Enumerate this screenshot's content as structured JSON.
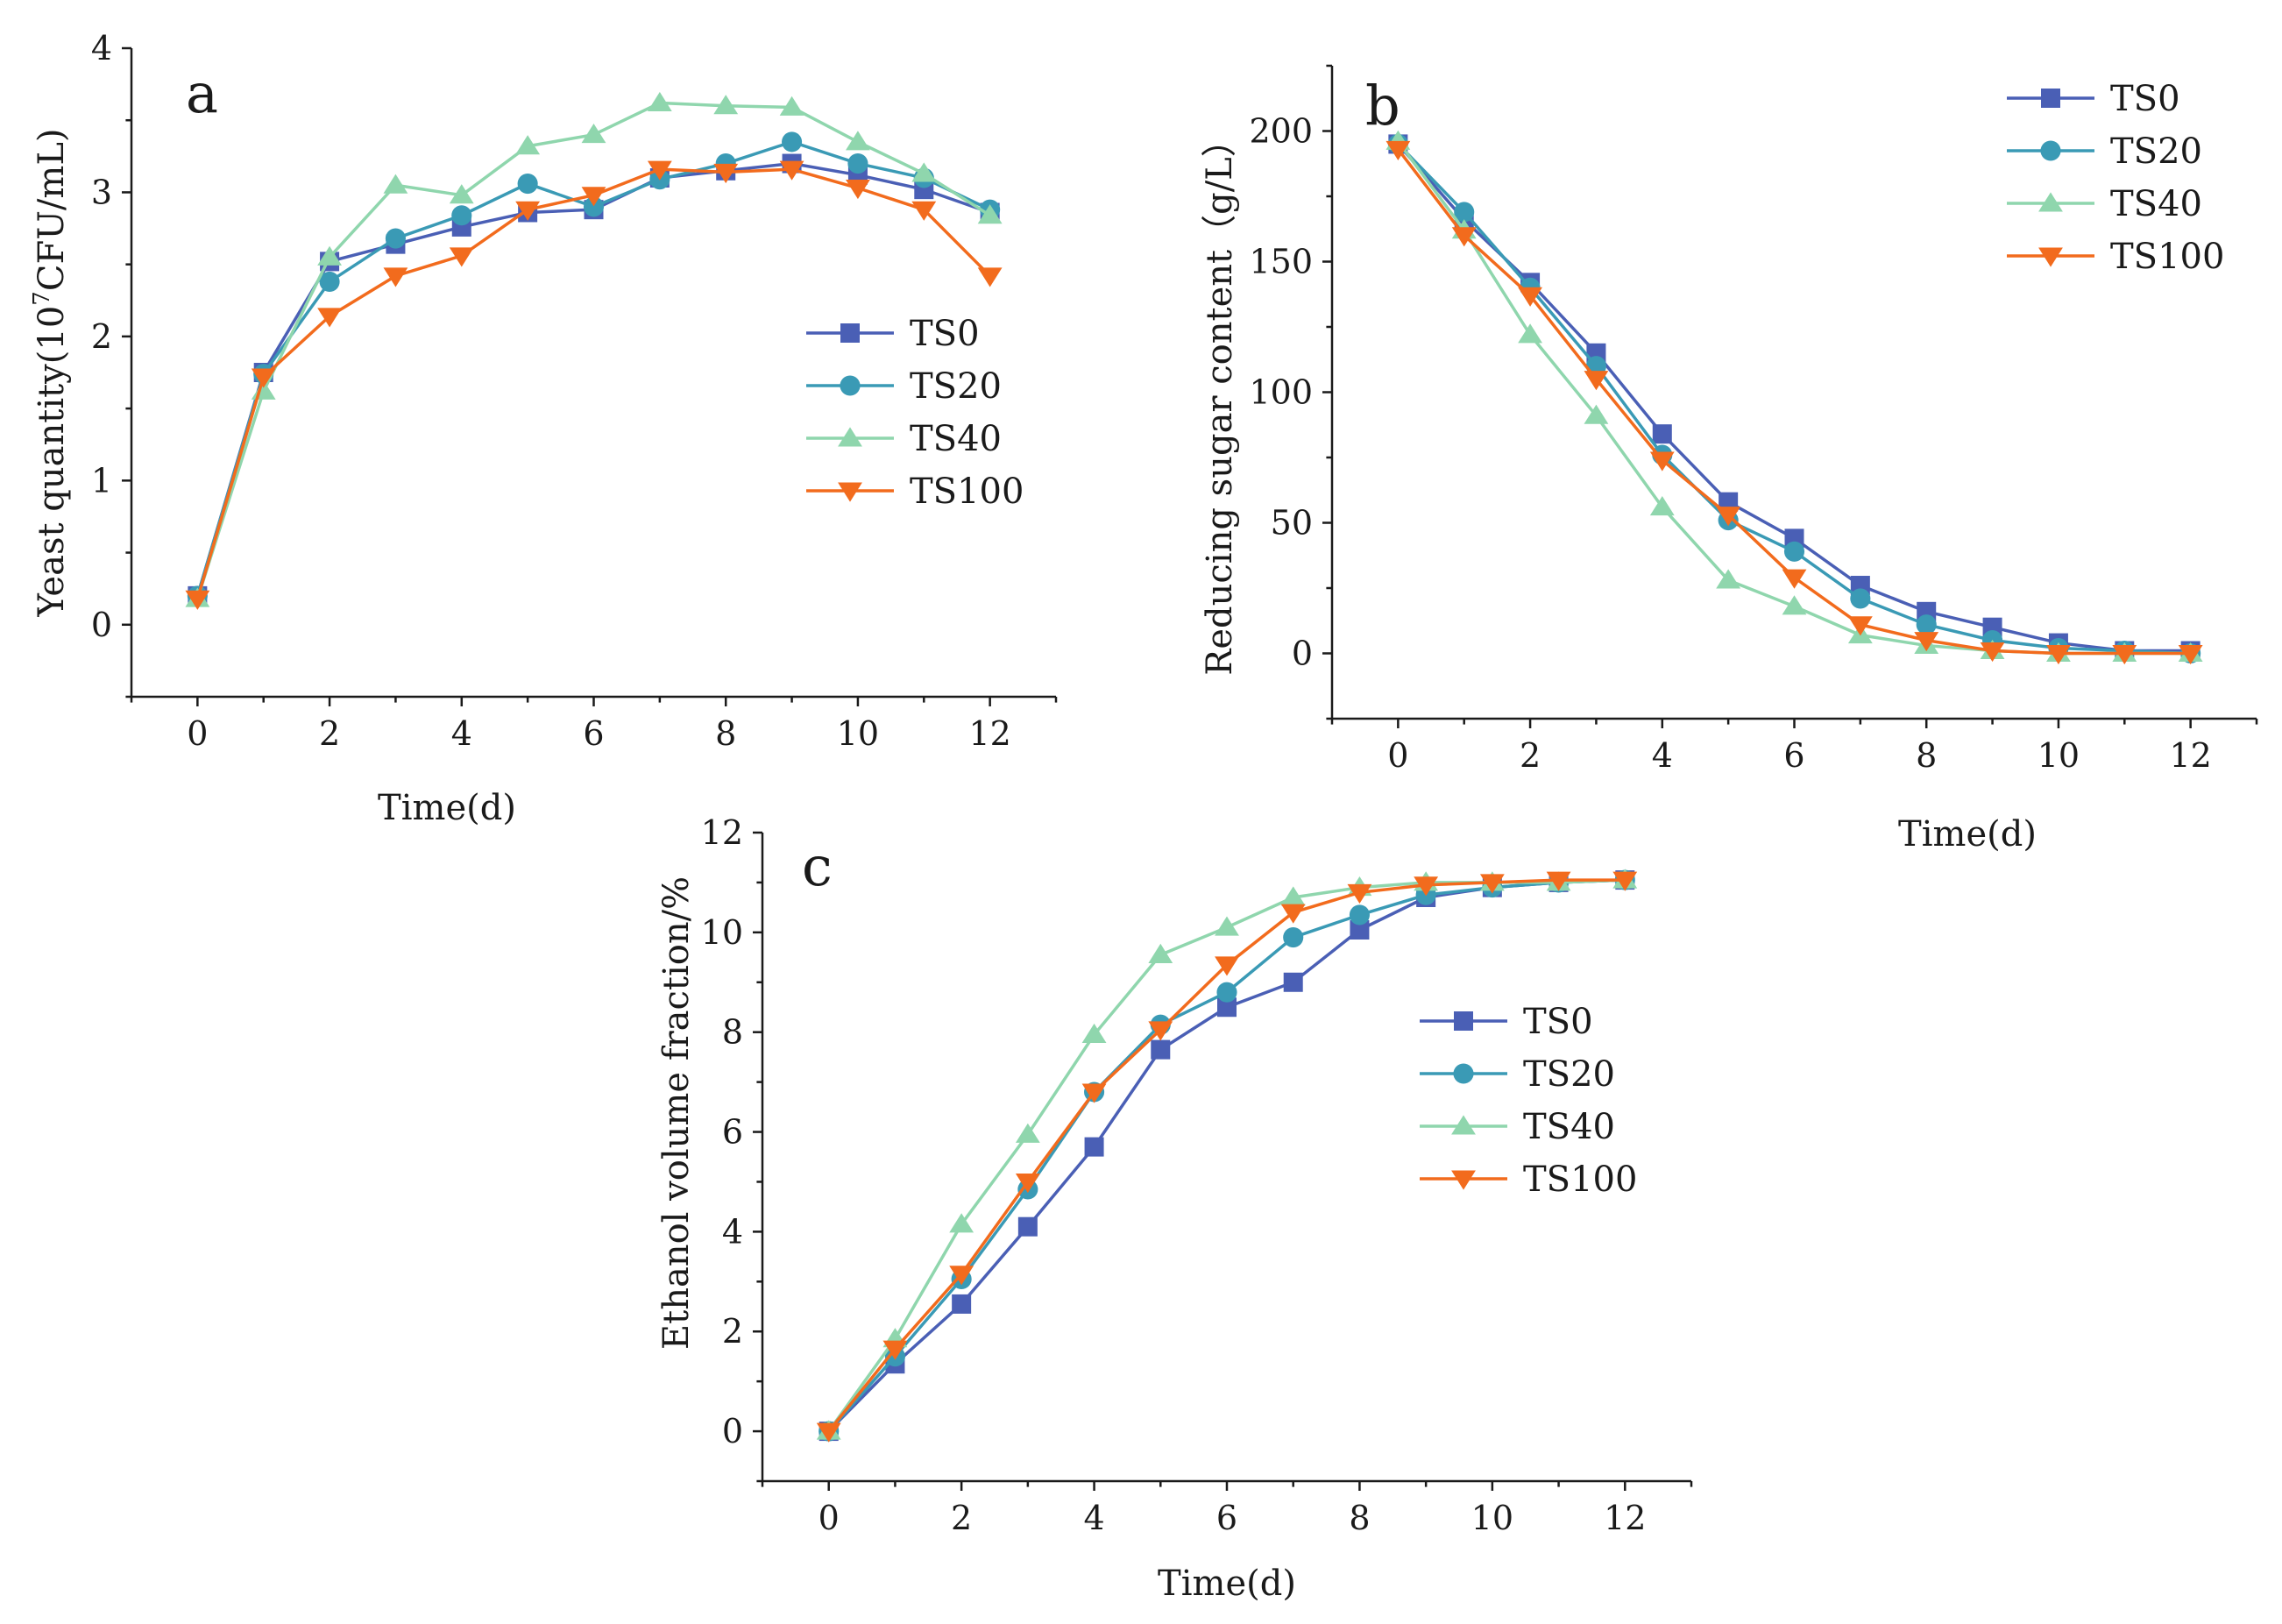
{
  "chart_data": [
    {
      "type": "line",
      "panel_label": "a",
      "xlabel": "Time(d)",
      "ylabel_prefix": "Yeast quantity(10",
      "ylabel_superscript": "7",
      "ylabel_suffix": "CFU/mL)",
      "xlim": [
        -1,
        13
      ],
      "ylim": [
        -0.5,
        4
      ],
      "xticks": [
        0,
        2,
        4,
        6,
        8,
        10,
        12
      ],
      "yticks": [
        0,
        1,
        2,
        3,
        4
      ],
      "x": [
        0,
        1,
        2,
        3,
        4,
        5,
        6,
        7,
        8,
        9,
        10,
        11,
        12
      ],
      "legend_position": "center-right",
      "series": [
        {
          "name": "TS0",
          "marker": "square",
          "color": "#4a5fb5",
          "values": [
            0.2,
            1.75,
            2.52,
            2.64,
            2.76,
            2.86,
            2.88,
            3.1,
            3.15,
            3.2,
            3.12,
            3.02,
            2.86
          ]
        },
        {
          "name": "TS20",
          "marker": "circle",
          "color": "#3a9ab5",
          "values": [
            0.2,
            1.74,
            2.38,
            2.68,
            2.84,
            3.06,
            2.9,
            3.09,
            3.2,
            3.35,
            3.2,
            3.1,
            2.88
          ]
        },
        {
          "name": "TS40",
          "marker": "triangle-up",
          "color": "#8fd6ad",
          "values": [
            0.18,
            1.62,
            2.55,
            3.05,
            2.98,
            3.32,
            3.4,
            3.62,
            3.6,
            3.59,
            3.35,
            3.13,
            2.84
          ]
        },
        {
          "name": "TS100",
          "marker": "triangle-down",
          "color": "#f26b1d",
          "values": [
            0.18,
            1.72,
            2.14,
            2.42,
            2.56,
            2.88,
            2.98,
            3.16,
            3.14,
            3.16,
            3.03,
            2.88,
            2.42
          ]
        }
      ]
    },
    {
      "type": "line",
      "panel_label": "b",
      "xlabel": "Time(d)",
      "ylabel": "Reducing sugar content（g/L）",
      "xlim": [
        -1,
        13
      ],
      "ylim": [
        -25,
        225
      ],
      "xticks": [
        0,
        2,
        4,
        6,
        8,
        10,
        12
      ],
      "yticks": [
        0,
        50,
        100,
        150,
        200
      ],
      "x": [
        0,
        1,
        2,
        3,
        4,
        5,
        6,
        7,
        8,
        9,
        10,
        11,
        12
      ],
      "legend_position": "top-right",
      "series": [
        {
          "name": "TS0",
          "marker": "square",
          "color": "#4a5fb5",
          "values": [
            195,
            166,
            142,
            115,
            84,
            58,
            44,
            26,
            16,
            10,
            4,
            1,
            1
          ]
        },
        {
          "name": "TS20",
          "marker": "circle",
          "color": "#3a9ab5",
          "values": [
            195,
            169,
            140,
            110,
            76,
            51,
            39,
            21,
            11,
            5,
            2,
            1,
            0
          ]
        },
        {
          "name": "TS40",
          "marker": "triangle-up",
          "color": "#8fd6ad",
          "values": [
            196,
            162,
            122,
            91,
            56,
            28,
            18,
            7,
            3,
            1,
            0,
            0,
            0
          ]
        },
        {
          "name": "TS100",
          "marker": "triangle-down",
          "color": "#f26b1d",
          "values": [
            193,
            160,
            137,
            105,
            74,
            53,
            29,
            11,
            5,
            1,
            0,
            0,
            0
          ]
        }
      ]
    },
    {
      "type": "line",
      "panel_label": "c",
      "xlabel": "Time(d)",
      "ylabel": "Ethanol volume fraction/%",
      "xlim": [
        -1,
        13
      ],
      "ylim": [
        -1,
        12
      ],
      "xticks": [
        0,
        2,
        4,
        6,
        8,
        10,
        12
      ],
      "yticks": [
        0,
        2,
        4,
        6,
        8,
        10,
        12
      ],
      "x": [
        0,
        1,
        2,
        3,
        4,
        5,
        6,
        7,
        8,
        9,
        10,
        11,
        12
      ],
      "legend_position": "center",
      "series": [
        {
          "name": "TS0",
          "marker": "square",
          "color": "#4a5fb5",
          "values": [
            0,
            1.35,
            2.55,
            4.1,
            5.7,
            7.65,
            8.5,
            9.0,
            10.05,
            10.7,
            10.9,
            11.0,
            11.05
          ]
        },
        {
          "name": "TS20",
          "marker": "circle",
          "color": "#3a9ab5",
          "values": [
            0,
            1.5,
            3.05,
            4.85,
            6.8,
            8.15,
            8.8,
            9.9,
            10.35,
            10.75,
            10.9,
            11.0,
            11.05
          ]
        },
        {
          "name": "TS40",
          "marker": "triangle-up",
          "color": "#8fd6ad",
          "values": [
            0,
            1.85,
            4.15,
            5.95,
            7.95,
            9.55,
            10.1,
            10.7,
            10.9,
            11.0,
            11.0,
            11.0,
            11.05
          ]
        },
        {
          "name": "TS100",
          "marker": "triangle-down",
          "color": "#f26b1d",
          "values": [
            0,
            1.65,
            3.15,
            5.0,
            6.8,
            8.05,
            9.35,
            10.4,
            10.8,
            10.95,
            11.0,
            11.05,
            11.05
          ]
        }
      ]
    }
  ]
}
